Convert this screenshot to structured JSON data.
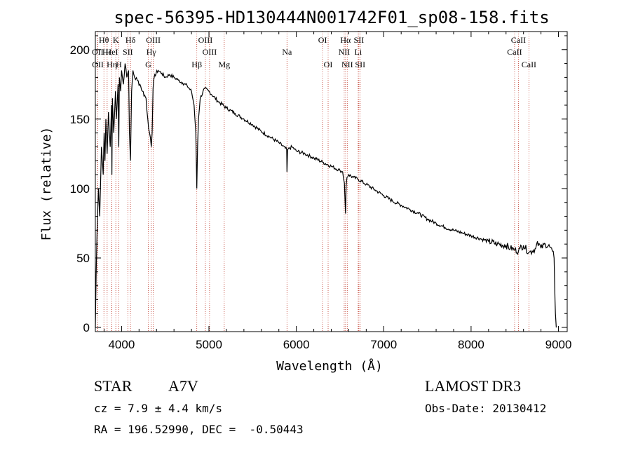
{
  "chart_data": {
    "type": "line",
    "title": "spec-56395-HD130444N001742F01_sp08-158.fits",
    "xlabel": "Wavelength (Å)",
    "ylabel": "Flux (relative)",
    "xlim": [
      3700,
      9100
    ],
    "ylim": [
      -3,
      213
    ],
    "xticks": [
      4000,
      5000,
      6000,
      7000,
      8000,
      9000
    ],
    "xtick_labels": [
      "4000",
      "5000",
      "6000",
      "7000",
      "8000",
      "9000"
    ],
    "yticks": [
      0,
      50,
      100,
      150,
      200
    ],
    "ytick_labels": [
      "0",
      "50",
      "100",
      "150",
      "200"
    ],
    "series": [
      {
        "name": "spectrum",
        "x": [
          3700,
          3710,
          3720,
          3735,
          3750,
          3770,
          3790,
          3800,
          3810,
          3820,
          3835,
          3850,
          3870,
          3885,
          3889,
          3895,
          3910,
          3930,
          3940,
          3960,
          3968,
          3975,
          3990,
          4000,
          4020,
          4040,
          4060,
          4080,
          4090,
          4102,
          4115,
          4130,
          4150,
          4180,
          4210,
          4240,
          4280,
          4300,
          4320,
          4340,
          4350,
          4360,
          4380,
          4420,
          4460,
          4500,
          4550,
          4600,
          4650,
          4700,
          4750,
          4800,
          4830,
          4850,
          4861,
          4870,
          4880,
          4900,
          4950,
          5000,
          5100,
          5200,
          5300,
          5400,
          5500,
          5600,
          5700,
          5800,
          5890,
          5893,
          5900,
          5950,
          6000,
          6100,
          6200,
          6300,
          6400,
          6500,
          6530,
          6550,
          6563,
          6570,
          6580,
          6600,
          6650,
          6700,
          6800,
          6900,
          7000,
          7100,
          7200,
          7300,
          7400,
          7500,
          7600,
          7700,
          7800,
          7900,
          8000,
          8100,
          8200,
          8300,
          8400,
          8450,
          8500,
          8542,
          8560,
          8600,
          8662,
          8700,
          8740,
          8750,
          8760,
          8800,
          8850,
          8900,
          8930,
          8950,
          8960,
          8965,
          8975
        ],
        "values": [
          0,
          40,
          70,
          100,
          80,
          130,
          110,
          140,
          120,
          150,
          125,
          155,
          130,
          160,
          110,
          165,
          140,
          170,
          150,
          175,
          130,
          180,
          170,
          185,
          175,
          190,
          180,
          185,
          140,
          120,
          170,
          185,
          180,
          178,
          175,
          170,
          165,
          150,
          140,
          130,
          140,
          172,
          182,
          185,
          183,
          180,
          182,
          180,
          178,
          176,
          174,
          170,
          160,
          140,
          100,
          130,
          150,
          165,
          172,
          170,
          163,
          158,
          154,
          150,
          146,
          141,
          137,
          133,
          128,
          112,
          128,
          130,
          127,
          125,
          122,
          119,
          116,
          113,
          112,
          104,
          82,
          102,
          108,
          110,
          108,
          107,
          103,
          99,
          95,
          91,
          88,
          85,
          82,
          78,
          75,
          72,
          70,
          68,
          66,
          64,
          62,
          60,
          59,
          57,
          56,
          55,
          57,
          59,
          54,
          55,
          57,
          60,
          62,
          57,
          60,
          58,
          55,
          50,
          20,
          10,
          0
        ]
      }
    ],
    "lines": [
      {
        "label": "Hθ",
        "wl": 3798,
        "row": 1
      },
      {
        "label": "K",
        "wl": 3934,
        "row": 1
      },
      {
        "label": "Hδ",
        "wl": 4102,
        "row": 1
      },
      {
        "label": "OIII",
        "wl": 4363,
        "row": 1
      },
      {
        "label": "OIII",
        "wl": 4959,
        "row": 1
      },
      {
        "label": "OI",
        "wl": 6300,
        "row": 1
      },
      {
        "label": "Hα",
        "wl": 6563,
        "row": 1
      },
      {
        "label": "SII",
        "wl": 6716,
        "row": 1
      },
      {
        "label": "CaII",
        "wl": 8542,
        "row": 1
      },
      {
        "label": "OII",
        "wl": 3727,
        "row": 2
      },
      {
        "label": "Hε",
        "wl": 3835,
        "row": 2
      },
      {
        "label": "HeI",
        "wl": 3889,
        "row": 2
      },
      {
        "label": "SII",
        "wl": 4072,
        "row": 2
      },
      {
        "label": "Hγ",
        "wl": 4340,
        "row": 2
      },
      {
        "label": "OIII",
        "wl": 5007,
        "row": 2
      },
      {
        "label": "Na",
        "wl": 5893,
        "row": 2
      },
      {
        "label": "NII",
        "wl": 6548,
        "row": 2
      },
      {
        "label": "Li",
        "wl": 6708,
        "row": 2
      },
      {
        "label": "CaII",
        "wl": 8498,
        "row": 2
      },
      {
        "label": "OII",
        "wl": 3729,
        "row": 3
      },
      {
        "label": "Hη",
        "wl": 3889,
        "row": 3
      },
      {
        "label": "H",
        "wl": 3968,
        "row": 3
      },
      {
        "label": "G",
        "wl": 4305,
        "row": 3
      },
      {
        "label": "Hβ",
        "wl": 4861,
        "row": 3
      },
      {
        "label": "Mg",
        "wl": 5175,
        "row": 3
      },
      {
        "label": "OI",
        "wl": 6364,
        "row": 3
      },
      {
        "label": "NII",
        "wl": 6583,
        "row": 3
      },
      {
        "label": "SII",
        "wl": 6731,
        "row": 3
      },
      {
        "label": "CaII",
        "wl": 8662,
        "row": 3
      }
    ],
    "line_color": "#000000",
    "marker_color": "#c0392b"
  },
  "footer": {
    "class": "STAR",
    "subclass": "A7V",
    "cz": "cz = 7.9 ± 4.4 km/s",
    "coords": "RA = 196.52990, DEC =  -0.50443",
    "survey": "LAMOST DR3",
    "obs_date": "Obs-Date: 20130412"
  }
}
